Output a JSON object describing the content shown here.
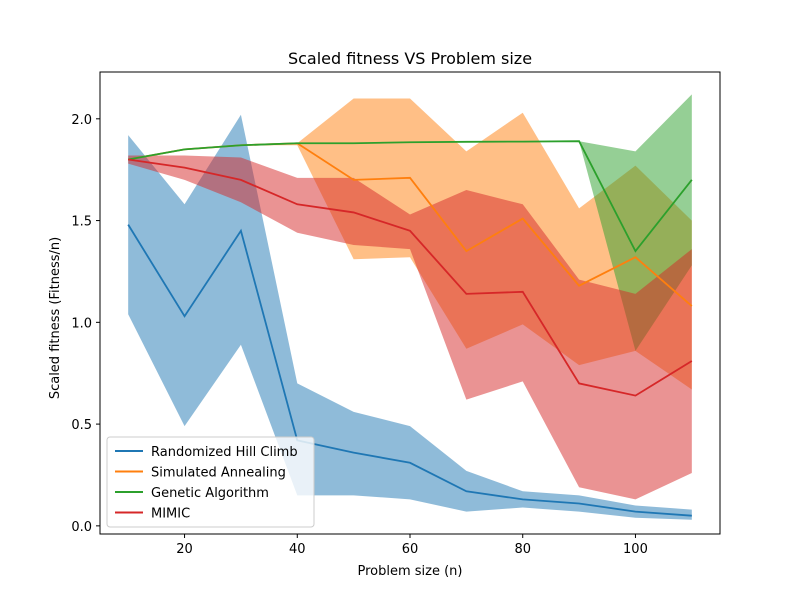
{
  "chart_data": {
    "type": "line",
    "title": "Scaled fitness VS Problem size",
    "xlabel": "Problem size (n)",
    "ylabel": "Scaled fitness (Fitness/n)",
    "xlim": [
      5,
      115
    ],
    "ylim": [
      -0.04,
      2.23
    ],
    "xticks": [
      20,
      40,
      60,
      80,
      100
    ],
    "yticks": [
      0.0,
      0.5,
      1.0,
      1.5,
      2.0
    ],
    "xtick_labels": [
      "20",
      "40",
      "60",
      "80",
      "100"
    ],
    "ytick_labels": [
      "0.0",
      "0.5",
      "1.0",
      "1.5",
      "2.0"
    ],
    "grid": false,
    "legend_position": "lower-left",
    "x": [
      10,
      20,
      30,
      40,
      50,
      60,
      70,
      80,
      90,
      100,
      110
    ],
    "series": [
      {
        "name": "Randomized Hill Climb",
        "color": "#1f77b4",
        "values": [
          1.48,
          1.03,
          1.45,
          0.42,
          0.36,
          0.31,
          0.17,
          0.13,
          0.11,
          0.07,
          0.05
        ],
        "lower": [
          1.04,
          0.49,
          0.89,
          0.15,
          0.15,
          0.13,
          0.07,
          0.09,
          0.07,
          0.04,
          0.03
        ],
        "upper": [
          1.92,
          1.58,
          2.02,
          0.7,
          0.56,
          0.49,
          0.27,
          0.17,
          0.15,
          0.1,
          0.08
        ]
      },
      {
        "name": "Simulated Annealing",
        "color": "#ff7f0e",
        "values": [
          1.8,
          1.85,
          1.87,
          1.88,
          1.7,
          1.71,
          1.35,
          1.51,
          1.18,
          1.32,
          1.08
        ],
        "lower": [
          1.8,
          1.85,
          1.87,
          1.87,
          1.31,
          1.32,
          0.87,
          0.99,
          0.79,
          0.86,
          0.67
        ],
        "upper": [
          1.8,
          1.85,
          1.87,
          1.88,
          2.1,
          2.1,
          1.84,
          2.03,
          1.56,
          1.77,
          1.5
        ]
      },
      {
        "name": "Genetic Algorithm",
        "color": "#2ca02c",
        "values": [
          1.8,
          1.85,
          1.87,
          1.88,
          1.88,
          1.885,
          1.887,
          1.888,
          1.89,
          1.35,
          1.7
        ],
        "lower": [
          1.8,
          1.85,
          1.87,
          1.88,
          1.88,
          1.885,
          1.887,
          1.888,
          1.89,
          0.86,
          1.28
        ],
        "upper": [
          1.8,
          1.85,
          1.87,
          1.88,
          1.88,
          1.885,
          1.887,
          1.888,
          1.89,
          1.84,
          2.12
        ]
      },
      {
        "name": "MIMIC",
        "color": "#d62728",
        "values": [
          1.8,
          1.76,
          1.7,
          1.58,
          1.54,
          1.45,
          1.14,
          1.15,
          0.7,
          0.64,
          0.81
        ],
        "lower": [
          1.78,
          1.7,
          1.59,
          1.44,
          1.38,
          1.36,
          0.62,
          0.71,
          0.19,
          0.13,
          0.26
        ],
        "upper": [
          1.82,
          1.82,
          1.81,
          1.71,
          1.71,
          1.53,
          1.65,
          1.58,
          1.21,
          1.14,
          1.36
        ]
      }
    ]
  }
}
